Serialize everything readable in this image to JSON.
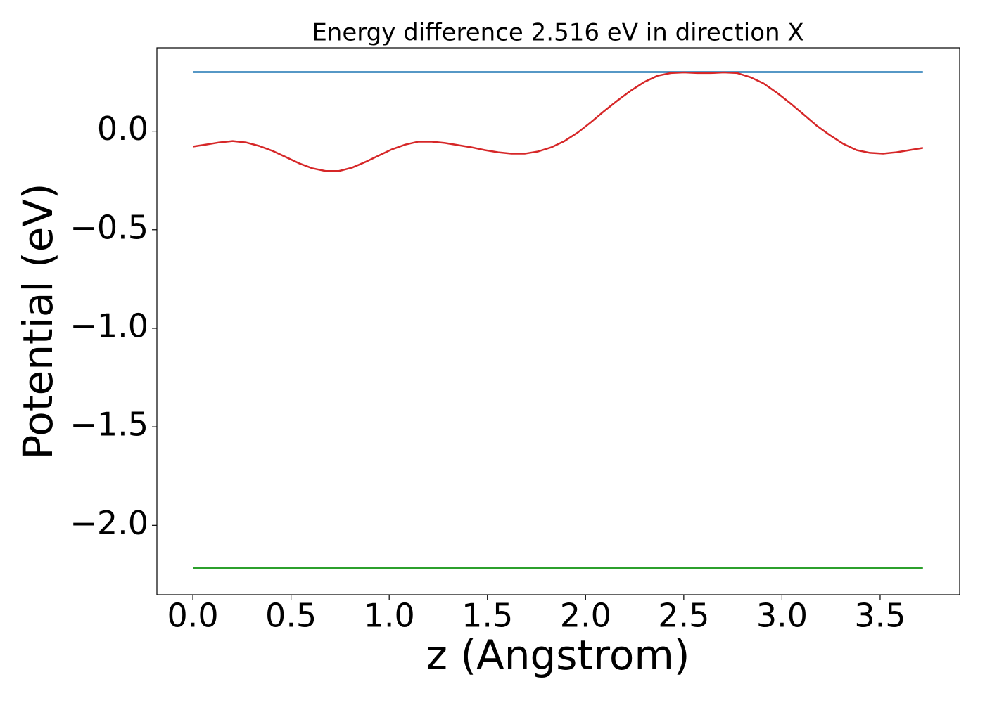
{
  "chart_data": {
    "type": "line",
    "title": "Energy difference 2.516 eV in direction X",
    "xlabel": "z (Angstrom)",
    "ylabel": "Potential (eV)",
    "xlim": [
      -0.183,
      3.905
    ],
    "ylim": [
      -2.352,
      0.423
    ],
    "xticks": [
      {
        "value": 0,
        "label": "0.0"
      },
      {
        "value": 0.5,
        "label": "0.5"
      },
      {
        "value": 1,
        "label": "1.0"
      },
      {
        "value": 1.5,
        "label": "1.5"
      },
      {
        "value": 2,
        "label": "2.0"
      },
      {
        "value": 2.5,
        "label": "2.5"
      },
      {
        "value": 3,
        "label": "3.0"
      },
      {
        "value": 3.5,
        "label": "3.5"
      }
    ],
    "yticks": [
      {
        "value": -2,
        "label": "−2.0"
      },
      {
        "value": -1.5,
        "label": "−1.5"
      },
      {
        "value": -1,
        "label": "−1.0"
      },
      {
        "value": -0.5,
        "label": "−0.5"
      },
      {
        "value": 0,
        "label": "0.0"
      }
    ],
    "grid": false,
    "series": [
      {
        "color": "#1f77b4",
        "x": [
          0,
          3.718
        ],
        "values": [
          0.3,
          0.3
        ]
      },
      {
        "color": "#d62728",
        "x": [
          0,
          0.068,
          0.135,
          0.203,
          0.27,
          0.338,
          0.406,
          0.473,
          0.541,
          0.608,
          0.676,
          0.744,
          0.811,
          0.879,
          0.946,
          1.014,
          1.082,
          1.149,
          1.217,
          1.284,
          1.352,
          1.42,
          1.487,
          1.555,
          1.622,
          1.69,
          1.758,
          1.825,
          1.893,
          1.96,
          2.028,
          2.096,
          2.163,
          2.231,
          2.298,
          2.366,
          2.434,
          2.501,
          2.569,
          2.636,
          2.704,
          2.772,
          2.839,
          2.907,
          2.974,
          3.042,
          3.11,
          3.177,
          3.245,
          3.312,
          3.38,
          3.448,
          3.515,
          3.583,
          3.65,
          3.718
        ],
        "values": [
          -0.078,
          -0.068,
          -0.057,
          -0.05,
          -0.057,
          -0.075,
          -0.1,
          -0.131,
          -0.163,
          -0.188,
          -0.202,
          -0.202,
          -0.185,
          -0.156,
          -0.124,
          -0.092,
          -0.068,
          -0.053,
          -0.053,
          -0.06,
          -0.071,
          -0.082,
          -0.096,
          -0.107,
          -0.114,
          -0.114,
          -0.103,
          -0.082,
          -0.05,
          -0.007,
          0.046,
          0.103,
          0.156,
          0.206,
          0.249,
          0.281,
          0.295,
          0.298,
          0.295,
          0.295,
          0.298,
          0.295,
          0.274,
          0.242,
          0.195,
          0.142,
          0.085,
          0.028,
          -0.021,
          -0.064,
          -0.096,
          -0.11,
          -0.114,
          -0.107,
          -0.096,
          -0.085
        ]
      },
      {
        "color": "#2ca02c",
        "x": [
          0,
          3.718
        ],
        "values": [
          -2.216,
          -2.216
        ]
      }
    ]
  }
}
